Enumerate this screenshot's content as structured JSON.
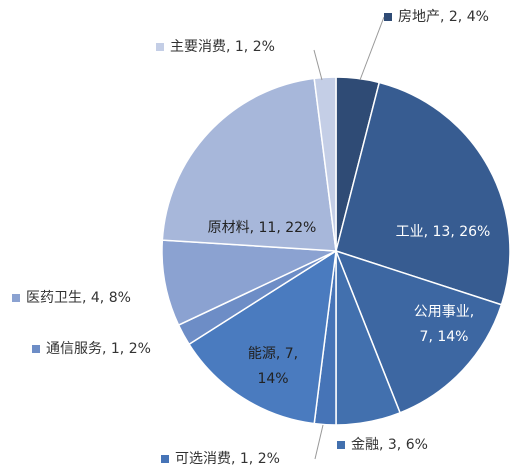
{
  "chart_data": {
    "type": "pie",
    "values": [
      2,
      13,
      7,
      3,
      1,
      7,
      1,
      4,
      11,
      1
    ],
    "value_labels": [
      "房地产, 2, 4%",
      "工业, 13, 26%",
      "公用事业, 7, 14%",
      "金融, 3, 6%",
      "可选消费, 1, 2%",
      "能源, 7, 14%",
      "通信服务, 1, 2%",
      "医药卫生, 4, 8%",
      "原材料, 11, 22%",
      "主要消费, 1, 2%"
    ],
    "colors": [
      "#2f4b75",
      "#375c91",
      "#3d67a2",
      "#4270ae",
      "#4674b7",
      "#4a7bbf",
      "#6d8dc6",
      "#8ba2d1",
      "#a7b7da",
      "#c4cee6"
    ]
  }
}
